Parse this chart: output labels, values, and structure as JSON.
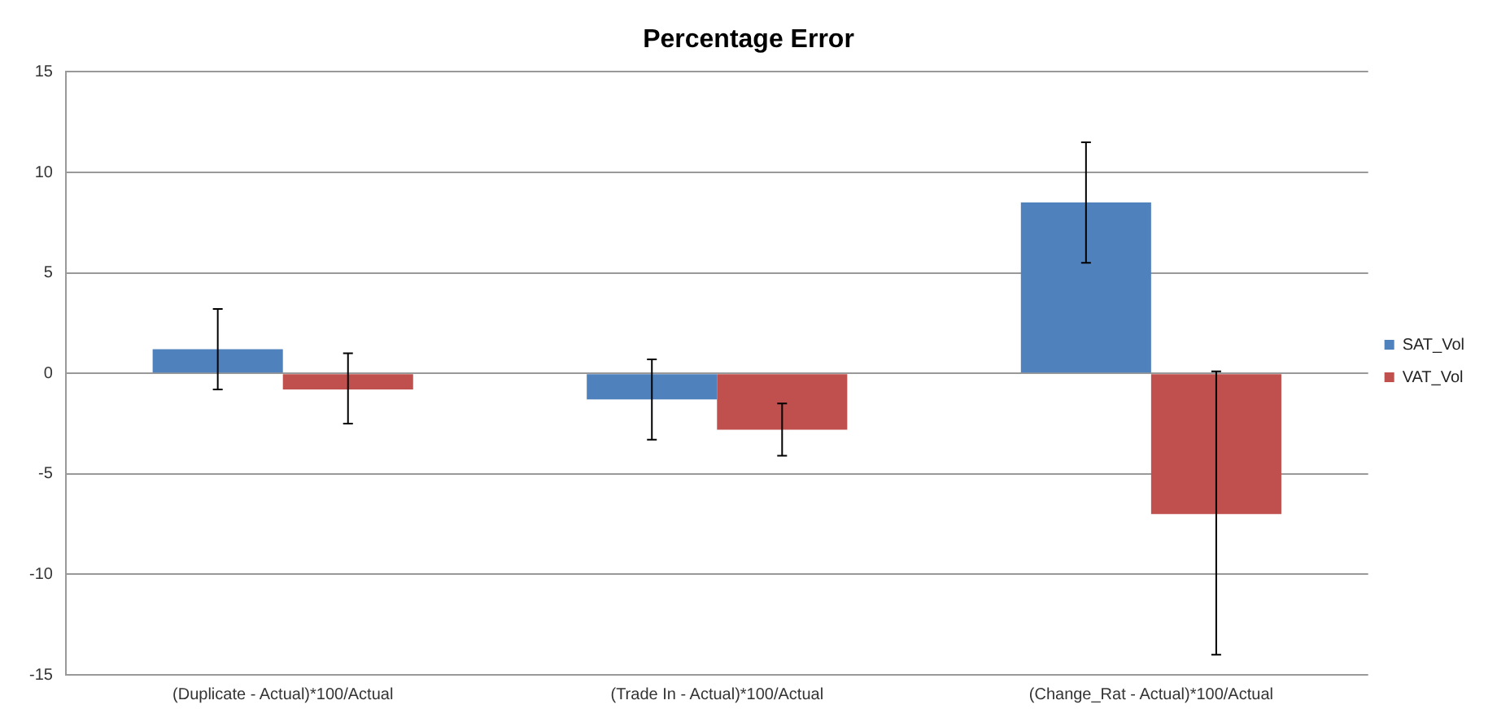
{
  "chart_data": {
    "type": "bar",
    "title": "Percentage Error",
    "categories": [
      "(Duplicate - Actual)*100/Actual",
      "(Trade In - Actual)*100/Actual",
      "(Change_Rat - Actual)*100/Actual"
    ],
    "series": [
      {
        "name": "SAT_Vol",
        "color": "#4f81bd",
        "values": [
          1.2,
          -1.3,
          8.5
        ],
        "errors": [
          [
            -0.8,
            3.2
          ],
          [
            -3.3,
            0.7
          ],
          [
            5.5,
            11.5
          ]
        ]
      },
      {
        "name": "VAT_Vol",
        "color": "#c0504d",
        "values": [
          -0.8,
          -2.8,
          -7.0
        ],
        "errors": [
          [
            -2.5,
            1.0
          ],
          [
            -4.1,
            -1.5
          ],
          [
            -14.0,
            0.1
          ]
        ]
      }
    ],
    "ylim": [
      -15,
      15
    ],
    "yticks": [
      -15,
      -10,
      -5,
      0,
      5,
      10,
      15
    ],
    "grid": "y",
    "legend": "right"
  }
}
